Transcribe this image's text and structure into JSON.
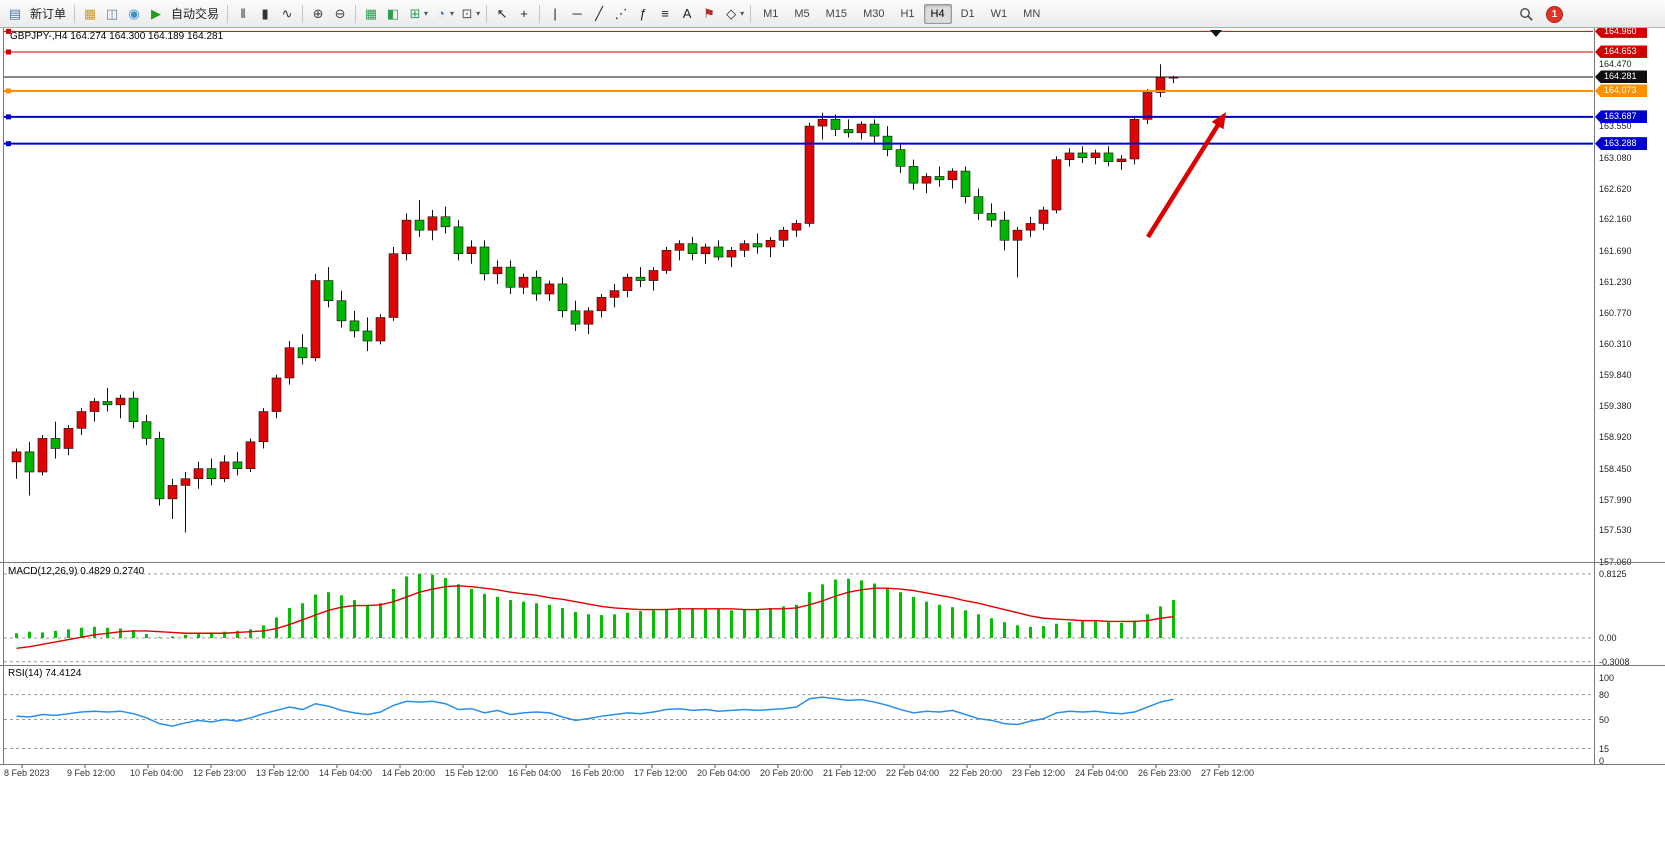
{
  "toolbar": {
    "new_order_label": "新订单",
    "auto_trading_label": "自动交易",
    "timeframes": [
      "M1",
      "M5",
      "M15",
      "M30",
      "H1",
      "H4",
      "D1",
      "W1",
      "MN"
    ],
    "active_timeframe": "H4",
    "notification_count": "1",
    "items": [
      {
        "t": "icon",
        "name": "new-order-icon",
        "g": "▤",
        "c": "#4a76a8"
      },
      {
        "t": "label",
        "name": "new-order-button",
        "text": "新订单"
      },
      {
        "t": "sep"
      },
      {
        "t": "icon",
        "name": "chart-list-icon",
        "g": "▦",
        "c": "#c89b2a"
      },
      {
        "t": "icon",
        "name": "market-watch-icon",
        "g": "◫",
        "c": "#6a7fa0"
      },
      {
        "t": "icon",
        "name": "community-icon",
        "g": "◉",
        "c": "#3d8fc9"
      },
      {
        "t": "icon",
        "name": "auto-trading-icon",
        "g": "▶",
        "c": "#1ea01e"
      },
      {
        "t": "label",
        "name": "auto-trading-button",
        "text": "自动交易"
      },
      {
        "t": "sep"
      },
      {
        "t": "icon",
        "name": "bar-chart-type-icon",
        "g": "‖",
        "c": "#333333"
      },
      {
        "t": "icon",
        "name": "candlestick-type-icon",
        "g": "▮",
        "c": "#333333"
      },
      {
        "t": "icon",
        "name": "line-chart-type-icon",
        "g": "∿",
        "c": "#333333"
      },
      {
        "t": "sep"
      },
      {
        "t": "icon",
        "name": "zoom-in-icon",
        "g": "⊕",
        "c": "#444444"
      },
      {
        "t": "icon",
        "name": "zoom-out-icon",
        "g": "⊖",
        "c": "#444444"
      },
      {
        "t": "sep"
      },
      {
        "t": "icon",
        "name": "tile-windows-icon",
        "g": "▦",
        "c": "#2e9e4f"
      },
      {
        "t": "icon",
        "name": "cascade-windows-icon",
        "g": "◧",
        "c": "#2e9e4f"
      },
      {
        "t": "icon",
        "name": "new-chart-icon",
        "g": "⊞",
        "c": "#2e9e4f"
      },
      {
        "t": "caret",
        "name": "new-chart-caret-icon"
      },
      {
        "t": "icon",
        "name": "period-selector-icon",
        "g": "◔",
        "c": "#2c72c7"
      },
      {
        "t": "caret",
        "name": "period-caret-icon"
      },
      {
        "t": "icon",
        "name": "template-icon",
        "g": "⊡",
        "c": "#555555"
      },
      {
        "t": "caret",
        "name": "template-caret-icon"
      },
      {
        "t": "sep"
      },
      {
        "t": "icon",
        "name": "cursor-icon",
        "g": "↖",
        "c": "#222222"
      },
      {
        "t": "icon",
        "name": "crosshair-icon",
        "g": "+",
        "c": "#222222"
      },
      {
        "t": "sep"
      },
      {
        "t": "icon",
        "name": "vertical-line-icon",
        "g": "|",
        "c": "#222222"
      },
      {
        "t": "icon",
        "name": "horizontal-line-icon",
        "g": "─",
        "c": "#222222"
      },
      {
        "t": "icon",
        "name": "trendline-icon",
        "g": "╱",
        "c": "#222222"
      },
      {
        "t": "icon",
        "name": "equidistant-channel-icon",
        "g": "⋰",
        "c": "#222222"
      },
      {
        "t": "icon",
        "name": "fibonacci-icon",
        "g": "ƒ",
        "c": "#222222"
      },
      {
        "t": "icon",
        "name": "channel-lines-icon",
        "g": "≡",
        "c": "#222222"
      },
      {
        "t": "icon",
        "name": "text-label-icon",
        "g": "A",
        "c": "#222222"
      },
      {
        "t": "icon",
        "name": "arrow-object-icon",
        "g": "⚑",
        "c": "#b03030"
      },
      {
        "t": "icon",
        "name": "shapes-icon",
        "g": "◇",
        "c": "#222222"
      },
      {
        "t": "caret",
        "name": "shapes-caret-icon"
      },
      {
        "t": "sep"
      },
      {
        "t": "tf"
      }
    ]
  },
  "chart": {
    "symbol_title": "GBPJPY-,H4  164.274 164.300 164.189 164.281"
  },
  "indicators": {
    "macd_label": "MACD(12,26,9) 0.4829 0.2740",
    "rsi_label": "RSI(14) 74.4124"
  },
  "time_axis": {
    "labels": [
      "8 Feb 2023",
      "9 Feb 12:00",
      "10 Feb 04:00",
      "12 Feb 23:00",
      "13 Feb 12:00",
      "14 Feb 04:00",
      "14 Feb 20:00",
      "15 Feb 12:00",
      "16 Feb 04:00",
      "16 Feb 20:00",
      "17 Feb 12:00",
      "20 Feb 04:00",
      "20 Feb 20:00",
      "21 Feb 12:00",
      "22 Feb 04:00",
      "22 Feb 20:00",
      "23 Feb 12:00",
      "24 Feb 04:00",
      "26 Feb 23:00",
      "27 Feb 12:00"
    ]
  },
  "chart_data": [
    {
      "type": "candlestick",
      "title": "GBPJPY-,H4",
      "current_ohlc": {
        "open": "164.274",
        "high": "164.300",
        "low": "164.189",
        "close": "164.281"
      },
      "ylim": [
        157.06,
        165.01
      ],
      "up_color": "#e00505",
      "down_color": "#00b400",
      "hlines": [
        {
          "value": 164.96,
          "color": "#d00000",
          "label": "164.960",
          "width": 1,
          "handle": true
        },
        {
          "value": 164.653,
          "color": "#d00000",
          "label": "164.653",
          "width": 1,
          "handle": true
        },
        {
          "value": 164.281,
          "color": "#101010",
          "label": "164.281",
          "width": 1,
          "handle": false
        },
        {
          "value": 164.073,
          "color": "#ff9000",
          "label": "164.073",
          "width": 2,
          "handle": true
        },
        {
          "value": 163.687,
          "color": "#0000cd",
          "label": "163.687",
          "width": 2,
          "handle": true
        },
        {
          "value": 163.288,
          "color": "#0000cd",
          "label": "163.288",
          "width": 2,
          "handle": true
        }
      ],
      "y_axis_ticks": [
        "164.470",
        "163.550",
        "163.080",
        "162.620",
        "162.160",
        "161.690",
        "161.230",
        "160.770",
        "160.310",
        "159.840",
        "159.380",
        "158.920",
        "158.450",
        "157.990",
        "157.530",
        "157.060"
      ],
      "annotation_arrow": {
        "color": "#dd0000",
        "from": [
          1148,
          237
        ],
        "to": [
          1226,
          112
        ]
      },
      "candles": [
        [
          158.55,
          158.75,
          158.3,
          158.7
        ],
        [
          158.7,
          158.85,
          158.05,
          158.4
        ],
        [
          158.4,
          158.95,
          158.35,
          158.9
        ],
        [
          158.9,
          159.15,
          158.6,
          158.75
        ],
        [
          158.75,
          159.1,
          158.65,
          159.05
        ],
        [
          159.05,
          159.35,
          158.95,
          159.3
        ],
        [
          159.3,
          159.5,
          159.15,
          159.45
        ],
        [
          159.45,
          159.65,
          159.3,
          159.4
        ],
        [
          159.4,
          159.55,
          159.2,
          159.5
        ],
        [
          159.5,
          159.6,
          159.05,
          159.15
        ],
        [
          159.15,
          159.25,
          158.8,
          158.9
        ],
        [
          158.9,
          159.0,
          157.9,
          158.0
        ],
        [
          158.0,
          158.3,
          157.7,
          158.2
        ],
        [
          158.2,
          158.4,
          157.5,
          158.3
        ],
        [
          158.3,
          158.55,
          158.15,
          158.45
        ],
        [
          158.45,
          158.6,
          158.2,
          158.3
        ],
        [
          158.3,
          158.65,
          158.25,
          158.55
        ],
        [
          158.55,
          158.7,
          158.35,
          158.45
        ],
        [
          158.45,
          158.9,
          158.4,
          158.85
        ],
        [
          158.85,
          159.35,
          158.75,
          159.3
        ],
        [
          159.3,
          159.85,
          159.2,
          159.8
        ],
        [
          159.8,
          160.35,
          159.7,
          160.25
        ],
        [
          160.25,
          160.45,
          160.0,
          160.1
        ],
        [
          160.1,
          161.35,
          160.05,
          161.25
        ],
        [
          161.25,
          161.45,
          160.85,
          160.95
        ],
        [
          160.95,
          161.1,
          160.55,
          160.65
        ],
        [
          160.65,
          160.8,
          160.4,
          160.5
        ],
        [
          160.5,
          160.7,
          160.2,
          160.35
        ],
        [
          160.35,
          160.75,
          160.3,
          160.7
        ],
        [
          160.7,
          161.75,
          160.65,
          161.65
        ],
        [
          161.65,
          162.25,
          161.55,
          162.15
        ],
        [
          162.15,
          162.45,
          161.9,
          162.0
        ],
        [
          162.0,
          162.3,
          161.85,
          162.2
        ],
        [
          162.2,
          162.35,
          161.95,
          162.05
        ],
        [
          162.05,
          162.15,
          161.55,
          161.65
        ],
        [
          161.65,
          161.85,
          161.5,
          161.75
        ],
        [
          161.75,
          161.85,
          161.25,
          161.35
        ],
        [
          161.35,
          161.55,
          161.2,
          161.45
        ],
        [
          161.45,
          161.55,
          161.05,
          161.15
        ],
        [
          161.15,
          161.35,
          161.05,
          161.3
        ],
        [
          161.3,
          161.4,
          160.95,
          161.05
        ],
        [
          161.05,
          161.25,
          160.95,
          161.2
        ],
        [
          161.2,
          161.3,
          160.7,
          160.8
        ],
        [
          160.8,
          160.95,
          160.5,
          160.6
        ],
        [
          160.6,
          160.85,
          160.45,
          160.8
        ],
        [
          160.8,
          161.05,
          160.7,
          161.0
        ],
        [
          161.0,
          161.2,
          160.85,
          161.1
        ],
        [
          161.1,
          161.35,
          161.0,
          161.3
        ],
        [
          161.3,
          161.45,
          161.15,
          161.25
        ],
        [
          161.25,
          161.45,
          161.1,
          161.4
        ],
        [
          161.4,
          161.75,
          161.35,
          161.7
        ],
        [
          161.7,
          161.85,
          161.55,
          161.8
        ],
        [
          161.8,
          161.9,
          161.55,
          161.65
        ],
        [
          161.65,
          161.8,
          161.5,
          161.75
        ],
        [
          161.75,
          161.85,
          161.55,
          161.6
        ],
        [
          161.6,
          161.75,
          161.45,
          161.7
        ],
        [
          161.7,
          161.85,
          161.6,
          161.8
        ],
        [
          161.8,
          161.95,
          161.65,
          161.75
        ],
        [
          161.75,
          161.9,
          161.6,
          161.85
        ],
        [
          161.85,
          162.05,
          161.75,
          162.0
        ],
        [
          162.0,
          162.15,
          161.9,
          162.1
        ],
        [
          162.1,
          163.6,
          162.05,
          163.55
        ],
        [
          163.55,
          163.75,
          163.35,
          163.65
        ],
        [
          163.65,
          163.72,
          163.4,
          163.5
        ],
        [
          163.5,
          163.65,
          163.38,
          163.45
        ],
        [
          163.45,
          163.62,
          163.35,
          163.58
        ],
        [
          163.58,
          163.65,
          163.3,
          163.4
        ],
        [
          163.4,
          163.55,
          163.1,
          163.2
        ],
        [
          163.2,
          163.3,
          162.85,
          162.95
        ],
        [
          162.95,
          163.05,
          162.6,
          162.7
        ],
        [
          162.7,
          162.85,
          162.55,
          162.8
        ],
        [
          162.8,
          162.95,
          162.65,
          162.75
        ],
        [
          162.75,
          162.92,
          162.62,
          162.88
        ],
        [
          162.88,
          162.95,
          162.4,
          162.5
        ],
        [
          162.5,
          162.62,
          162.15,
          162.25
        ],
        [
          162.25,
          162.4,
          162.05,
          162.15
        ],
        [
          162.15,
          162.28,
          161.7,
          161.85
        ],
        [
          161.85,
          162.05,
          161.3,
          162.0
        ],
        [
          162.0,
          162.2,
          161.9,
          162.1
        ],
        [
          162.1,
          162.35,
          162.0,
          162.3
        ],
        [
          162.3,
          163.1,
          162.25,
          163.05
        ],
        [
          163.05,
          163.22,
          162.95,
          163.15
        ],
        [
          163.15,
          163.25,
          163.0,
          163.08
        ],
        [
          163.08,
          163.2,
          162.98,
          163.15
        ],
        [
          163.15,
          163.25,
          162.95,
          163.02
        ],
        [
          163.02,
          163.12,
          162.9,
          163.06
        ],
        [
          163.06,
          163.7,
          162.98,
          163.65
        ],
        [
          163.65,
          164.1,
          163.58,
          164.05
        ],
        [
          164.05,
          164.47,
          163.98,
          164.28
        ],
        [
          164.274,
          164.3,
          164.189,
          164.281
        ]
      ]
    },
    {
      "type": "bar",
      "name": "MACD(12,26,9)",
      "current": [
        "0.4829",
        "0.2740"
      ],
      "ylim": [
        -0.3008,
        0.8125
      ],
      "axis_labels": [
        "0.8125",
        "0.00",
        "-0.3008"
      ],
      "histogram_color": "#00c000",
      "signal_color": "#e00000",
      "histogram": [
        0.06,
        0.08,
        0.07,
        0.09,
        0.11,
        0.13,
        0.14,
        0.13,
        0.12,
        0.1,
        0.05,
        0.01,
        0.02,
        0.04,
        0.06,
        0.07,
        0.08,
        0.09,
        0.11,
        0.16,
        0.26,
        0.38,
        0.44,
        0.55,
        0.58,
        0.54,
        0.48,
        0.42,
        0.44,
        0.62,
        0.78,
        0.81,
        0.8,
        0.76,
        0.68,
        0.62,
        0.56,
        0.52,
        0.48,
        0.46,
        0.44,
        0.42,
        0.38,
        0.33,
        0.3,
        0.29,
        0.3,
        0.32,
        0.34,
        0.35,
        0.37,
        0.38,
        0.38,
        0.37,
        0.36,
        0.35,
        0.36,
        0.37,
        0.38,
        0.4,
        0.42,
        0.58,
        0.68,
        0.74,
        0.75,
        0.73,
        0.69,
        0.64,
        0.58,
        0.52,
        0.46,
        0.42,
        0.39,
        0.35,
        0.3,
        0.25,
        0.2,
        0.16,
        0.14,
        0.15,
        0.18,
        0.2,
        0.21,
        0.21,
        0.2,
        0.19,
        0.22,
        0.3,
        0.4,
        0.48
      ],
      "signal": [
        -0.13,
        -0.11,
        -0.08,
        -0.05,
        -0.02,
        0.01,
        0.04,
        0.06,
        0.08,
        0.09,
        0.09,
        0.08,
        0.07,
        0.06,
        0.06,
        0.06,
        0.06,
        0.07,
        0.08,
        0.09,
        0.12,
        0.17,
        0.23,
        0.29,
        0.35,
        0.39,
        0.41,
        0.41,
        0.42,
        0.46,
        0.52,
        0.58,
        0.62,
        0.65,
        0.66,
        0.65,
        0.63,
        0.61,
        0.58,
        0.56,
        0.54,
        0.51,
        0.49,
        0.46,
        0.43,
        0.4,
        0.38,
        0.37,
        0.36,
        0.36,
        0.36,
        0.37,
        0.37,
        0.37,
        0.37,
        0.37,
        0.36,
        0.36,
        0.37,
        0.37,
        0.38,
        0.42,
        0.47,
        0.53,
        0.58,
        0.61,
        0.63,
        0.63,
        0.62,
        0.6,
        0.57,
        0.54,
        0.51,
        0.47,
        0.44,
        0.4,
        0.36,
        0.32,
        0.28,
        0.25,
        0.24,
        0.23,
        0.22,
        0.22,
        0.21,
        0.21,
        0.21,
        0.22,
        0.25,
        0.27
      ]
    },
    {
      "type": "line",
      "name": "RSI(14)",
      "current": "74.4124",
      "ylim": [
        0,
        100
      ],
      "levels": [
        80,
        50,
        15
      ],
      "axis_labels": [
        "100",
        "80",
        "50",
        "15",
        "0"
      ],
      "line_color": "#2a8fe8",
      "values": [
        54,
        53,
        56,
        55,
        57,
        59,
        60,
        59,
        60,
        57,
        52,
        45,
        42,
        46,
        49,
        47,
        50,
        48,
        52,
        57,
        61,
        65,
        62,
        69,
        66,
        61,
        58,
        56,
        59,
        67,
        72,
        71,
        72,
        69,
        62,
        63,
        58,
        61,
        56,
        58,
        59,
        58,
        53,
        49,
        51,
        54,
        56,
        58,
        57,
        59,
        62,
        63,
        61,
        62,
        60,
        61,
        62,
        61,
        62,
        63,
        65,
        75,
        77,
        75,
        73,
        74,
        71,
        67,
        62,
        58,
        60,
        59,
        61,
        56,
        51,
        49,
        45,
        44,
        48,
        51,
        58,
        60,
        59,
        60,
        58,
        57,
        59,
        65,
        71,
        74.41
      ]
    }
  ]
}
